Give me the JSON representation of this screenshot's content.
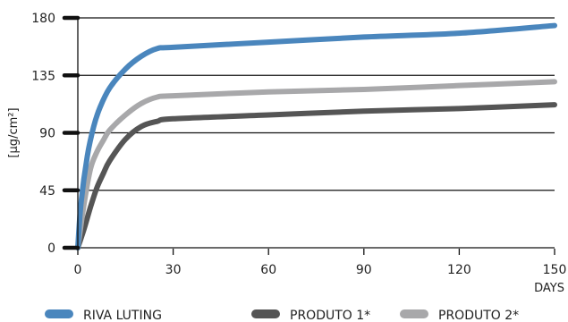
{
  "chart_data": {
    "type": "line",
    "title": "",
    "xlabel": "DAYS",
    "ylabel": "[µg/cm²]",
    "xlim": [
      0,
      150
    ],
    "ylim": [
      0,
      180
    ],
    "x_ticks": [
      0,
      30,
      60,
      90,
      120,
      150
    ],
    "y_ticks": [
      0,
      45,
      90,
      135,
      180
    ],
    "grid": "horizontal",
    "legend_position": "bottom",
    "series": [
      {
        "name": "RIVA LUTING",
        "color": "#4a86bd",
        "x": [
          0,
          1,
          3,
          5,
          7,
          10,
          15,
          20,
          25,
          30,
          60,
          90,
          120,
          150
        ],
        "y": [
          0,
          35,
          72,
          95,
          110,
          125,
          140,
          150,
          156,
          157,
          161,
          165,
          168,
          174
        ]
      },
      {
        "name": "PRODUTO 1*",
        "color": "#555555",
        "x": [
          0,
          2,
          4,
          6,
          8,
          10,
          15,
          20,
          25,
          30,
          60,
          90,
          120,
          150
        ],
        "y": [
          0,
          15,
          32,
          47,
          58,
          68,
          85,
          95,
          99,
          101,
          104,
          107,
          109,
          112
        ]
      },
      {
        "name": "PRODUTO 2*",
        "color": "#a8a8aa",
        "x": [
          0,
          2,
          4,
          6,
          8,
          10,
          15,
          20,
          25,
          30,
          60,
          90,
          120,
          150
        ],
        "y": [
          0,
          35,
          62,
          75,
          84,
          92,
          104,
          113,
          118,
          119,
          122,
          124,
          127,
          130
        ]
      }
    ]
  }
}
